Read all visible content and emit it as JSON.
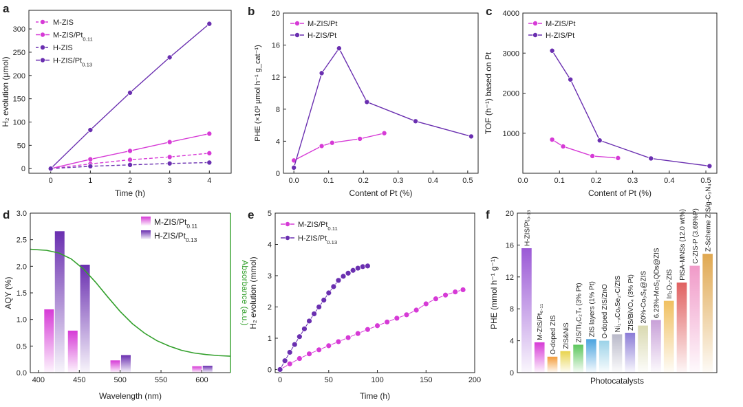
{
  "colors": {
    "magenta": "#d63ad6",
    "purple": "#6a2fb0",
    "green": "#33a02c",
    "axis": "#222222"
  },
  "chart_data": [
    {
      "id": "a",
      "panel_label": "a",
      "type": "line",
      "title": "",
      "xlabel": "Time (h)",
      "ylabel": "H₂ evolution (μmol)",
      "xlim": [
        0,
        4
      ],
      "ylim": [
        0,
        320
      ],
      "xticks": [
        0,
        1,
        2,
        3,
        4
      ],
      "yticks": [
        0,
        50,
        100,
        150,
        200,
        250,
        300
      ],
      "legend": "top-left",
      "series": [
        {
          "name": "M-ZIS",
          "sub": "",
          "color": "#d63ad6",
          "dashed": true,
          "x": [
            0,
            1,
            2,
            3,
            4
          ],
          "y": [
            0,
            10,
            19,
            25,
            33
          ]
        },
        {
          "name": "M-ZIS/Pt",
          "sub": "0.11",
          "color": "#d63ad6",
          "dashed": false,
          "x": [
            0,
            1,
            2,
            3,
            4
          ],
          "y": [
            0,
            20,
            38,
            57,
            75
          ]
        },
        {
          "name": "H-ZIS",
          "sub": "",
          "color": "#6a2fb0",
          "dashed": true,
          "x": [
            0,
            1,
            2,
            3,
            4
          ],
          "y": [
            0,
            5,
            8,
            11,
            13
          ]
        },
        {
          "name": "H-ZIS/Pt",
          "sub": "0.13",
          "color": "#6a2fb0",
          "dashed": false,
          "x": [
            0,
            1,
            2,
            3,
            4
          ],
          "y": [
            0,
            83,
            163,
            239,
            311
          ]
        }
      ]
    },
    {
      "id": "b",
      "panel_label": "b",
      "type": "line",
      "title": "",
      "xlabel": "Content of Pt (%)",
      "ylabel": "PHE (×10³ μmol h⁻¹ g_cat⁻¹)",
      "xlim": [
        -0.03,
        0.53
      ],
      "ylim": [
        0,
        20
      ],
      "xticks": [
        0.0,
        0.1,
        0.2,
        0.3,
        0.4,
        0.5
      ],
      "yticks": [
        0,
        4,
        8,
        12,
        16,
        20
      ],
      "legend": "top-left",
      "series": [
        {
          "name": "M-ZIS/Pt",
          "sub": "",
          "color": "#d63ad6",
          "dashed": false,
          "x": [
            0,
            0.08,
            0.11,
            0.19,
            0.26
          ],
          "y": [
            1.6,
            3.4,
            3.8,
            4.3,
            5.0
          ]
        },
        {
          "name": "H-ZIS/Pt",
          "sub": "",
          "color": "#6a2fb0",
          "dashed": false,
          "x": [
            0,
            0.08,
            0.13,
            0.21,
            0.35,
            0.51
          ],
          "y": [
            0.7,
            12.5,
            15.6,
            8.9,
            6.5,
            4.6
          ]
        }
      ]
    },
    {
      "id": "c",
      "panel_label": "c",
      "type": "line",
      "title": "",
      "xlabel": "Content of Pt (%)",
      "ylabel": "TOF (h⁻¹) based on Pt",
      "xlim": [
        0,
        0.53
      ],
      "ylim": [
        0,
        4000
      ],
      "xticks": [
        0.0,
        0.1,
        0.2,
        0.3,
        0.4,
        0.5
      ],
      "yticks": [
        1000,
        2000,
        3000,
        4000
      ],
      "legend": "top-left",
      "series": [
        {
          "name": "M-ZIS/Pt",
          "sub": "",
          "color": "#d63ad6",
          "dashed": false,
          "x": [
            0.08,
            0.11,
            0.19,
            0.26
          ],
          "y": [
            840,
            670,
            430,
            380
          ]
        },
        {
          "name": "H-ZIS/Pt",
          "sub": "",
          "color": "#6a2fb0",
          "dashed": false,
          "x": [
            0.08,
            0.13,
            0.21,
            0.35,
            0.51
          ],
          "y": [
            3060,
            2340,
            820,
            370,
            180
          ]
        }
      ]
    },
    {
      "id": "d",
      "panel_label": "d",
      "type": "bar",
      "title": "",
      "xlabel": "Wavelength (nm)",
      "ylabel": "AQY (%)",
      "ylabel_right": "Absorbance (a.u.)",
      "xlim": [
        390,
        635
      ],
      "ylim": [
        0,
        3.0
      ],
      "xticks": [
        400,
        450,
        500,
        550,
        600
      ],
      "yticks": [
        0.0,
        0.5,
        1.0,
        1.5,
        2.0,
        2.5,
        3.0
      ],
      "legend": "top-right",
      "series": [
        {
          "name": "M-ZIS/Pt",
          "sub": "0.11",
          "color": "#d63ad6",
          "x": [
            413,
            442,
            494,
            594
          ],
          "y": [
            1.19,
            0.79,
            0.23,
            0.12
          ]
        },
        {
          "name": "H-ZIS/Pt",
          "sub": "0.13",
          "color": "#6a2fb0",
          "x": [
            426,
            457,
            507,
            607
          ],
          "y": [
            2.66,
            2.03,
            0.33,
            0.13
          ]
        }
      ],
      "absorbance_curve": {
        "color": "#33a02c",
        "x": [
          390,
          410,
          425,
          440,
          455,
          470,
          485,
          500,
          515,
          530,
          545,
          560,
          575,
          590,
          605,
          620,
          635
        ],
        "y": [
          2.32,
          2.3,
          2.25,
          2.14,
          1.95,
          1.7,
          1.42,
          1.15,
          0.92,
          0.74,
          0.6,
          0.5,
          0.42,
          0.37,
          0.34,
          0.32,
          0.31
        ]
      }
    },
    {
      "id": "e",
      "panel_label": "e",
      "type": "scatter",
      "title": "",
      "xlabel": "Time (h)",
      "ylabel": "H₂ evolution (mmol)",
      "xlim": [
        -5,
        200
      ],
      "ylim": [
        -0.1,
        5
      ],
      "xticks": [
        0,
        50,
        100,
        150,
        200
      ],
      "yticks": [
        0,
        1,
        2,
        3,
        4,
        5
      ],
      "legend": "top-left",
      "series": [
        {
          "name": "M-ZIS/Pt",
          "sub": "0.11",
          "color": "#d63ad6",
          "x": [
            0,
            10,
            20,
            30,
            40,
            50,
            60,
            70,
            80,
            90,
            100,
            110,
            120,
            130,
            140,
            150,
            160,
            170,
            180,
            188
          ],
          "y": [
            0,
            0.18,
            0.35,
            0.5,
            0.63,
            0.76,
            0.89,
            1.02,
            1.15,
            1.28,
            1.4,
            1.52,
            1.64,
            1.75,
            1.9,
            2.1,
            2.26,
            2.38,
            2.48,
            2.55
          ]
        },
        {
          "name": "H-ZIS/Pt",
          "sub": "0.13",
          "color": "#6a2fb0",
          "x": [
            0,
            5,
            10,
            15,
            20,
            25,
            30,
            35,
            40,
            45,
            50,
            55,
            60,
            65,
            70,
            75,
            80,
            85,
            90
          ],
          "y": [
            0,
            0.28,
            0.55,
            0.8,
            1.05,
            1.3,
            1.55,
            1.78,
            2.0,
            2.22,
            2.45,
            2.65,
            2.85,
            2.98,
            3.08,
            3.17,
            3.24,
            3.29,
            3.31
          ]
        }
      ]
    },
    {
      "id": "f",
      "panel_label": "f",
      "type": "bar",
      "title": "",
      "xlabel": "Photocatalysts",
      "ylabel": "PHE (mmol h⁻¹ g⁻¹)",
      "ylim": [
        0,
        20
      ],
      "yticks": [
        0,
        4,
        8,
        12,
        16,
        20
      ],
      "categories": [
        "H-ZIS/Pt0.13",
        "M-ZIS/Pt0.11",
        "O-doped ZIS",
        "ZIS&NiS",
        "ZIS/Ti3C2Tx (3% Pt)",
        "ZIS layers (1% Pt)",
        "O-doped ZIS/ZnO",
        "Ni1-xCoxSe2-C/ZIS",
        "ZIS/BiVO4 (3% Pt)",
        "20%-Co9S8@ZIS",
        "6.23%-MoS2QDs@ZIS",
        "In2O3-ZIS",
        "PISA-MNSs (12.0 wt%)",
        "C-ZIS-P (3.69%P)",
        "Z-Scheme ZIS/g-C3N4"
      ],
      "category_labels": [
        "H-ZIS/Pt₀.₁₃",
        "M-ZIS/Pt₀.₁₁",
        "O-doped ZIS",
        "ZIS&NiS",
        "ZIS/Ti₃C₂Tₓ (3% Pt)",
        "ZIS layers (1% Pt)",
        "O-doped ZIS/ZnO",
        "Ni₁₋ₓCoₓSe₂-C/ZIS",
        "ZIS/BiVO₄ (3% Pt)",
        "20%-Co₉S₈@ZIS",
        "6.23%-MoS₂QDs@ZIS",
        "In₂O₃-ZIS",
        "PISA-MNSs (12.0 wt%)",
        "C-ZIS-P (3.69%P)",
        "Z-Scheme ZIS/g-C₃N₄"
      ],
      "values": [
        15.6,
        3.8,
        2.0,
        2.7,
        3.5,
        4.2,
        4.0,
        4.8,
        5.0,
        5.9,
        6.6,
        9.0,
        11.3,
        13.4,
        14.9
      ],
      "bar_colors": [
        "#9b59d6",
        "#d63ad6",
        "#f39c3a",
        "#e8d44d",
        "#5cc65c",
        "#4aa3df",
        "#9bd2e8",
        "#b9b9c9",
        "#8a7bd6",
        "#d9d9b0",
        "#c8a0d8",
        "#f0c060",
        "#e06060",
        "#f09ac8",
        "#e0a850"
      ]
    }
  ]
}
